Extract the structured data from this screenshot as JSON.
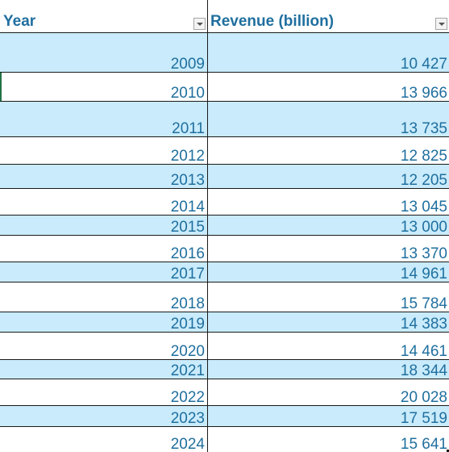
{
  "table": {
    "headers": {
      "year": "Year",
      "revenue": "Revenue (billion)"
    },
    "rows": [
      {
        "year": "2009",
        "revenue": "10 427"
      },
      {
        "year": "2010",
        "revenue": "13 966"
      },
      {
        "year": "2011",
        "revenue": "13 735"
      },
      {
        "year": "2012",
        "revenue": "12 825"
      },
      {
        "year": "2013",
        "revenue": "12 205"
      },
      {
        "year": "2014",
        "revenue": "13 045"
      },
      {
        "year": "2015",
        "revenue": "13 000"
      },
      {
        "year": "2016",
        "revenue": "13 370"
      },
      {
        "year": "2017",
        "revenue": "14 961"
      },
      {
        "year": "2018",
        "revenue": "15 784"
      },
      {
        "year": "2019",
        "revenue": "14 383"
      },
      {
        "year": "2020",
        "revenue": "14 461"
      },
      {
        "year": "2021",
        "revenue": "18 344"
      },
      {
        "year": "2022",
        "revenue": "20 028"
      },
      {
        "year": "2023",
        "revenue": "17 519"
      },
      {
        "year": "2024",
        "revenue": "15 641"
      }
    ]
  },
  "icons": {
    "filter": "filter-dropdown-icon"
  },
  "colors": {
    "header_text": "#1f6f9f",
    "band_fill": "#c9ebfb",
    "grid_line": "#1a1a1a"
  }
}
